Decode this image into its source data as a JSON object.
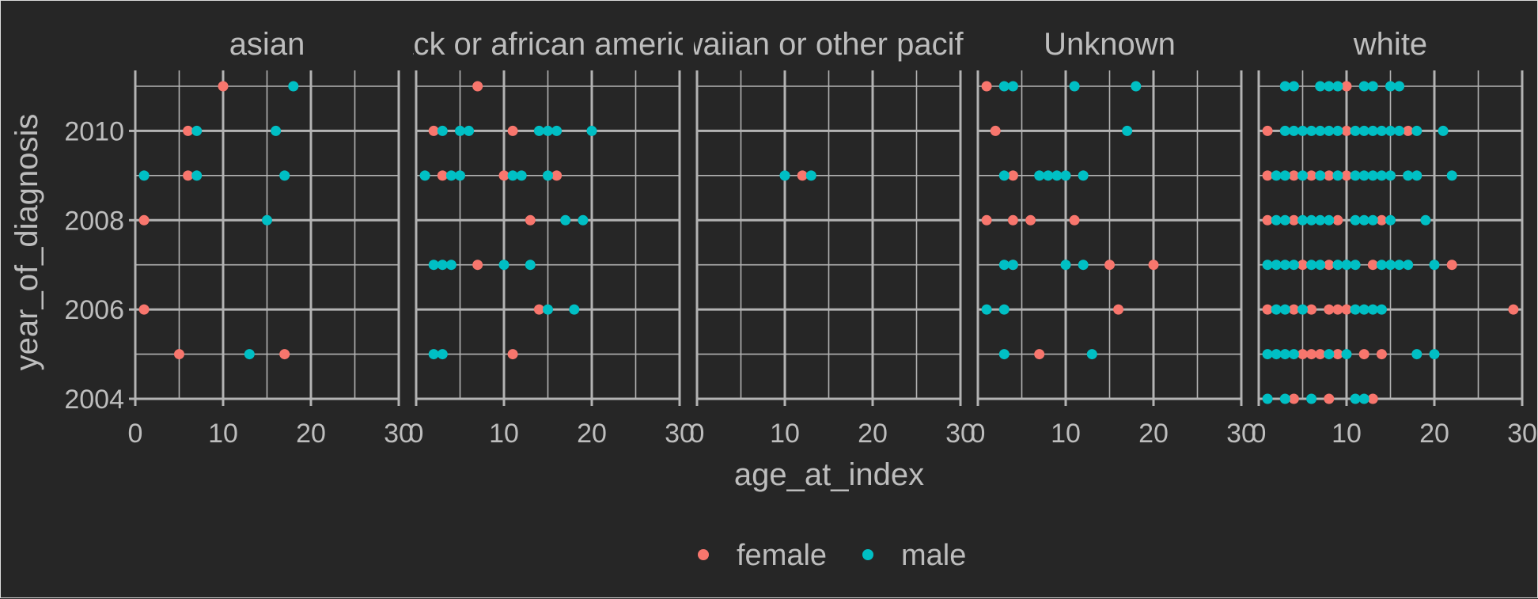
{
  "chart_data": {
    "type": "scatter",
    "facet_by": "race",
    "panels": [
      {
        "title": "asian",
        "female": [
          [
            10,
            2011
          ],
          [
            6,
            2010
          ],
          [
            6,
            2009
          ],
          [
            1,
            2008
          ],
          [
            1,
            2006
          ],
          [
            5,
            2005
          ],
          [
            17,
            2005
          ]
        ],
        "male": [
          [
            18,
            2011
          ],
          [
            7,
            2010
          ],
          [
            16,
            2010
          ],
          [
            1,
            2009
          ],
          [
            7,
            2009
          ],
          [
            17,
            2009
          ],
          [
            15,
            2008
          ],
          [
            13,
            2005
          ]
        ]
      },
      {
        "title": "black or african american",
        "female": [
          [
            7,
            2011
          ],
          [
            2,
            2010
          ],
          [
            11,
            2010
          ],
          [
            3,
            2009
          ],
          [
            10,
            2009
          ],
          [
            16,
            2009
          ],
          [
            13,
            2008
          ],
          [
            7,
            2007
          ],
          [
            14,
            2006
          ],
          [
            11,
            2005
          ]
        ],
        "male": [
          [
            3,
            2010
          ],
          [
            5,
            2010
          ],
          [
            6,
            2010
          ],
          [
            14,
            2010
          ],
          [
            15,
            2010
          ],
          [
            16,
            2010
          ],
          [
            20,
            2010
          ],
          [
            1,
            2009
          ],
          [
            4,
            2009
          ],
          [
            5,
            2009
          ],
          [
            11,
            2009
          ],
          [
            12,
            2009
          ],
          [
            15,
            2009
          ],
          [
            17,
            2008
          ],
          [
            19,
            2008
          ],
          [
            2,
            2007
          ],
          [
            3,
            2007
          ],
          [
            4,
            2007
          ],
          [
            10,
            2007
          ],
          [
            13,
            2007
          ],
          [
            15,
            2006
          ],
          [
            18,
            2006
          ],
          [
            2,
            2005
          ],
          [
            3,
            2005
          ]
        ]
      },
      {
        "title": "native hawaiian or other pacific islander",
        "female": [
          [
            12,
            2009
          ]
        ],
        "male": [
          [
            10,
            2009
          ],
          [
            13,
            2009
          ]
        ]
      },
      {
        "title": "Unknown",
        "female": [
          [
            1,
            2011
          ],
          [
            2,
            2010
          ],
          [
            4,
            2009
          ],
          [
            1,
            2008
          ],
          [
            4,
            2008
          ],
          [
            6,
            2008
          ],
          [
            11,
            2008
          ],
          [
            4,
            2007
          ],
          [
            15,
            2007
          ],
          [
            20,
            2007
          ],
          [
            16,
            2006
          ],
          [
            7,
            2005
          ]
        ],
        "male": [
          [
            3,
            2011
          ],
          [
            4,
            2011
          ],
          [
            11,
            2011
          ],
          [
            18,
            2011
          ],
          [
            17,
            2010
          ],
          [
            3,
            2009
          ],
          [
            7,
            2009
          ],
          [
            8,
            2009
          ],
          [
            9,
            2009
          ],
          [
            10,
            2009
          ],
          [
            12,
            2009
          ],
          [
            3,
            2007
          ],
          [
            4,
            2007
          ],
          [
            10,
            2007
          ],
          [
            12,
            2007
          ],
          [
            1,
            2006
          ],
          [
            3,
            2006
          ],
          [
            3,
            2005
          ],
          [
            13,
            2005
          ]
        ]
      },
      {
        "title": "white",
        "female": [
          [
            10,
            2011
          ],
          [
            1,
            2010
          ],
          [
            10,
            2010
          ],
          [
            17,
            2010
          ],
          [
            1,
            2009
          ],
          [
            4,
            2009
          ],
          [
            6,
            2009
          ],
          [
            8,
            2009
          ],
          [
            10,
            2009
          ],
          [
            1,
            2008
          ],
          [
            4,
            2008
          ],
          [
            9,
            2008
          ],
          [
            14,
            2008
          ],
          [
            5,
            2007
          ],
          [
            8,
            2007
          ],
          [
            13,
            2007
          ],
          [
            22,
            2007
          ],
          [
            1,
            2006
          ],
          [
            4,
            2006
          ],
          [
            6,
            2006
          ],
          [
            8,
            2006
          ],
          [
            9,
            2006
          ],
          [
            10,
            2006
          ],
          [
            29,
            2006
          ],
          [
            5,
            2005
          ],
          [
            6,
            2005
          ],
          [
            7,
            2005
          ],
          [
            9,
            2005
          ],
          [
            12,
            2005
          ],
          [
            14,
            2005
          ],
          [
            4,
            2004
          ],
          [
            8,
            2004
          ],
          [
            13,
            2004
          ]
        ],
        "male": [
          [
            3,
            2011
          ],
          [
            4,
            2011
          ],
          [
            7,
            2011
          ],
          [
            8,
            2011
          ],
          [
            9,
            2011
          ],
          [
            12,
            2011
          ],
          [
            13,
            2011
          ],
          [
            15,
            2011
          ],
          [
            16,
            2011
          ],
          [
            3,
            2010
          ],
          [
            4,
            2010
          ],
          [
            5,
            2010
          ],
          [
            6,
            2010
          ],
          [
            7,
            2010
          ],
          [
            8,
            2010
          ],
          [
            9,
            2010
          ],
          [
            11,
            2010
          ],
          [
            12,
            2010
          ],
          [
            13,
            2010
          ],
          [
            14,
            2010
          ],
          [
            15,
            2010
          ],
          [
            16,
            2010
          ],
          [
            18,
            2010
          ],
          [
            21,
            2010
          ],
          [
            2,
            2009
          ],
          [
            3,
            2009
          ],
          [
            5,
            2009
          ],
          [
            7,
            2009
          ],
          [
            9,
            2009
          ],
          [
            11,
            2009
          ],
          [
            12,
            2009
          ],
          [
            13,
            2009
          ],
          [
            14,
            2009
          ],
          [
            15,
            2009
          ],
          [
            17,
            2009
          ],
          [
            18,
            2009
          ],
          [
            22,
            2009
          ],
          [
            2,
            2008
          ],
          [
            3,
            2008
          ],
          [
            5,
            2008
          ],
          [
            6,
            2008
          ],
          [
            7,
            2008
          ],
          [
            8,
            2008
          ],
          [
            11,
            2008
          ],
          [
            12,
            2008
          ],
          [
            13,
            2008
          ],
          [
            15,
            2008
          ],
          [
            19,
            2008
          ],
          [
            1,
            2007
          ],
          [
            2,
            2007
          ],
          [
            3,
            2007
          ],
          [
            4,
            2007
          ],
          [
            6,
            2007
          ],
          [
            7,
            2007
          ],
          [
            9,
            2007
          ],
          [
            10,
            2007
          ],
          [
            11,
            2007
          ],
          [
            14,
            2007
          ],
          [
            15,
            2007
          ],
          [
            16,
            2007
          ],
          [
            17,
            2007
          ],
          [
            20,
            2007
          ],
          [
            2,
            2006
          ],
          [
            3,
            2006
          ],
          [
            5,
            2006
          ],
          [
            11,
            2006
          ],
          [
            12,
            2006
          ],
          [
            13,
            2006
          ],
          [
            14,
            2006
          ],
          [
            1,
            2005
          ],
          [
            2,
            2005
          ],
          [
            3,
            2005
          ],
          [
            4,
            2005
          ],
          [
            8,
            2005
          ],
          [
            10,
            2005
          ],
          [
            18,
            2005
          ],
          [
            20,
            2005
          ],
          [
            1,
            2004
          ],
          [
            3,
            2004
          ],
          [
            6,
            2004
          ],
          [
            11,
            2004
          ],
          [
            12,
            2004
          ]
        ]
      }
    ],
    "xlabel": "age_at_index",
    "ylabel": "year_of_diagnosis",
    "xlim": [
      0,
      30
    ],
    "ylim": [
      2004,
      2011.5
    ],
    "x_ticks": [
      0,
      10,
      20,
      30
    ],
    "y_ticks": [
      2004,
      2006,
      2008,
      2010
    ],
    "legend": {
      "placement": "bottom",
      "entries": [
        {
          "label": "female",
          "color": "#f8766d"
        },
        {
          "label": "male",
          "color": "#00bfc4"
        }
      ]
    },
    "colors": {
      "female": "#f8766d",
      "male": "#00bfc4",
      "background": "#262626",
      "grid": "#b3b3b3",
      "text": "#bdbdbd"
    },
    "grid": true
  }
}
